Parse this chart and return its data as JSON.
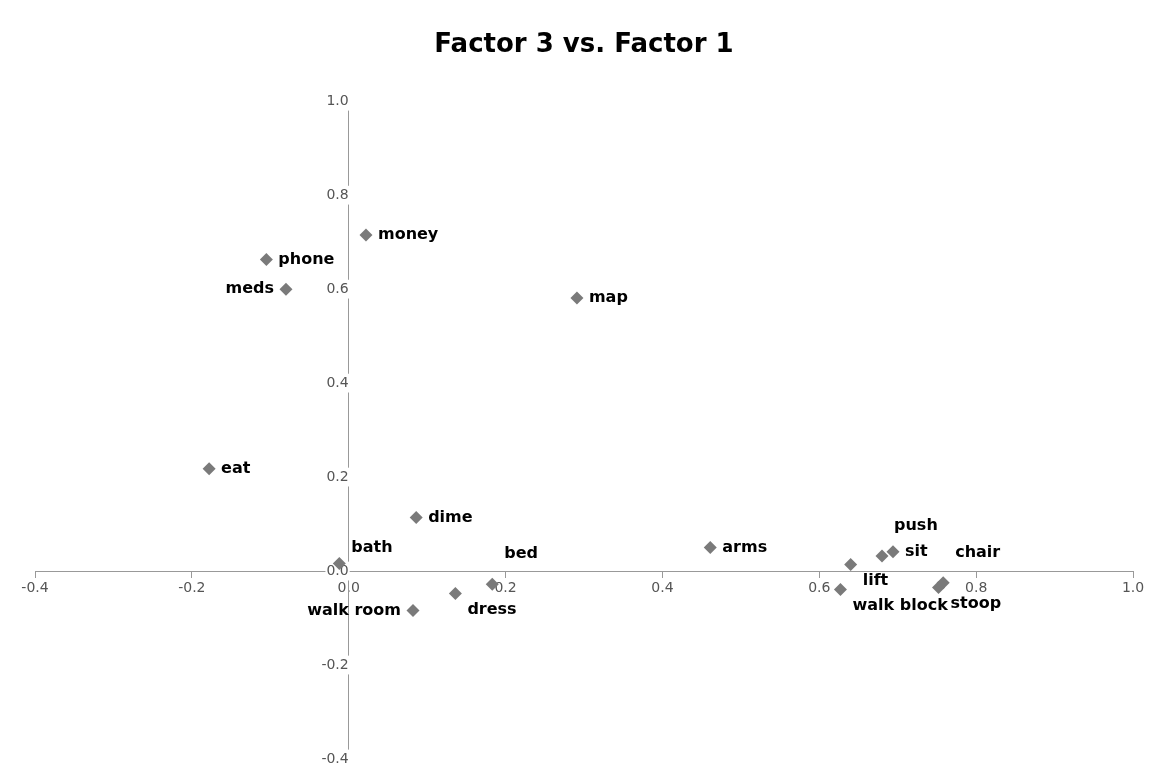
{
  "chart_data": {
    "type": "scatter",
    "title": "Factor 3 vs. Factor 1",
    "x": [
      0.022,
      -0.105,
      -0.08,
      0.291,
      -0.178,
      0.086,
      -0.012,
      0.136,
      0.183,
      0.082,
      0.461,
      0.64,
      0.68,
      0.694,
      0.627,
      0.758,
      0.752
    ],
    "series": [
      {
        "color": "#7a7a7a",
        "values": [
          0.715,
          0.663,
          0.6,
          0.581,
          0.218,
          0.114,
          0.016,
          -0.048,
          -0.028,
          -0.084,
          0.05,
          0.014,
          0.032,
          0.041,
          -0.039,
          -0.025,
          -0.035
        ]
      }
    ],
    "annotations": [
      {
        "text": "money",
        "x": 0.022,
        "y": 0.715
      },
      {
        "text": "phone",
        "x": -0.105,
        "y": 0.663
      },
      {
        "text": "meds",
        "x": -0.08,
        "y": 0.6
      },
      {
        "text": "map",
        "x": 0.291,
        "y": 0.581
      },
      {
        "text": "eat",
        "x": -0.178,
        "y": 0.218
      },
      {
        "text": "dime",
        "x": 0.086,
        "y": 0.114
      },
      {
        "text": "bath",
        "x": -0.012,
        "y": 0.016
      },
      {
        "text": "dress",
        "x": 0.136,
        "y": -0.048
      },
      {
        "text": "bed",
        "x": 0.183,
        "y": -0.028
      },
      {
        "text": "walk room",
        "x": 0.082,
        "y": -0.084
      },
      {
        "text": "arms",
        "x": 0.461,
        "y": 0.05
      },
      {
        "text": "lift",
        "x": 0.64,
        "y": 0.014
      },
      {
        "text": "push",
        "x": 0.68,
        "y": 0.032
      },
      {
        "text": "sit",
        "x": 0.694,
        "y": 0.041
      },
      {
        "text": "walk block",
        "x": 0.627,
        "y": -0.039
      },
      {
        "text": "chair",
        "x": 0.758,
        "y": -0.025
      },
      {
        "text": "stoop",
        "x": 0.752,
        "y": -0.035
      }
    ],
    "xlim": [
      -0.4,
      1.0
    ],
    "ylim": [
      -0.4,
      1.0
    ],
    "xticks": [
      -0.4,
      -0.2,
      {
        "value": 0,
        "label": "0.0"
      },
      0.2,
      0.4,
      0.6,
      0.8,
      {
        "value": 1,
        "label": "1.0"
      }
    ],
    "yticks": [
      -0.4,
      -0.2,
      {
        "value": 0,
        "label": "0.0"
      },
      0.2,
      0.4,
      0.6,
      0.8,
      {
        "value": 1,
        "label": "1.0"
      }
    ],
    "marker": "diamond",
    "grid": false,
    "legend": false
  }
}
